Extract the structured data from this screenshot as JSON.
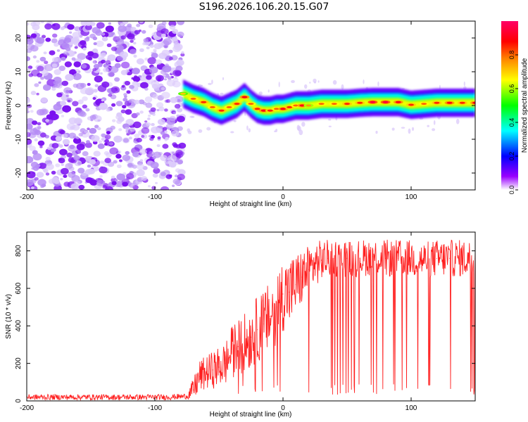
{
  "title": "S196.2026.106.20.15.G07",
  "chart_data": [
    {
      "type": "heatmap",
      "title": "S196.2026.106.20.15.G07",
      "xlabel": "Height of straight line (km)",
      "ylabel": "Frequency (Hz)",
      "xlim": [
        -200,
        150
      ],
      "ylim": [
        -25,
        25
      ],
      "x_ticks": [
        -200,
        -100,
        0,
        100
      ],
      "y_ticks": [
        -20,
        -10,
        0,
        10,
        20
      ],
      "noise_region_x": [
        -200,
        -78
      ],
      "ridge": {
        "x": [
          -78,
          -70,
          -62,
          -55,
          -48,
          -42,
          -36,
          -30,
          -25,
          -20,
          -15,
          -10,
          -5,
          0,
          5,
          10,
          15,
          20,
          30,
          40,
          50,
          60,
          70,
          80,
          90,
          100,
          110,
          120,
          130,
          140,
          150
        ],
        "frequency": [
          3.5,
          2.0,
          1.0,
          -0.5,
          -1.5,
          -0.5,
          0.5,
          2.5,
          0.5,
          -1.0,
          -1.5,
          -1.5,
          -1.0,
          -1.0,
          -0.5,
          0.0,
          0.0,
          0.0,
          0.5,
          0.5,
          0.5,
          0.8,
          1.0,
          1.0,
          1.0,
          0.2,
          0.5,
          0.8,
          0.8,
          0.8,
          0.8
        ],
        "amplitude": [
          0.7,
          0.8,
          0.85,
          0.8,
          0.85,
          0.8,
          0.85,
          0.9,
          0.8,
          0.85,
          0.9,
          0.85,
          0.8,
          0.9,
          0.85,
          0.8,
          0.9,
          0.75,
          0.8,
          0.8,
          0.85,
          0.85,
          0.95,
          0.95,
          0.9,
          0.85,
          0.8,
          0.85,
          0.9,
          0.85,
          0.9
        ]
      },
      "colorbar": {
        "label": "Normalized spectral amplitude",
        "range": [
          0.0,
          1.0
        ],
        "ticks": [
          0.0,
          0.2,
          0.4,
          0.6,
          0.8
        ],
        "tick_labels": [
          "0.0",
          "0.2",
          "0.4",
          "0.6",
          "0.8"
        ]
      },
      "colors": [
        "#ffffff",
        "#9900ff",
        "#0000ff",
        "#00ffff",
        "#00ff00",
        "#ffff00",
        "#ff8000",
        "#ff0000",
        "#ff0066"
      ]
    },
    {
      "type": "line",
      "xlabel": "Height of straight line (km)",
      "ylabel": "SNR (10 * v/v)",
      "xlim": [
        -200,
        150
      ],
      "ylim": [
        0,
        900
      ],
      "x_ticks": [
        -200,
        -100,
        0,
        100
      ],
      "y_ticks": [
        0,
        200,
        400,
        600,
        800
      ],
      "line_color": "#ff2020",
      "series": [
        {
          "name": "SNR",
          "x": [
            -200,
            -90,
            -75,
            -70,
            -65,
            -60,
            -55,
            -50,
            -45,
            -40,
            -35,
            -30,
            -25,
            -20,
            -15,
            -10,
            -5,
            0,
            5,
            10,
            15,
            20,
            25,
            30,
            35,
            40,
            50,
            60,
            70,
            80,
            90,
            100,
            110,
            120,
            130,
            140,
            150
          ],
          "y": [
            20,
            20,
            25,
            60,
            130,
            150,
            165,
            180,
            200,
            260,
            290,
            310,
            340,
            380,
            410,
            450,
            500,
            570,
            580,
            620,
            660,
            700,
            730,
            750,
            760,
            760,
            760,
            760,
            770,
            760,
            760,
            760,
            750,
            760,
            760,
            760,
            760
          ],
          "spread": [
            15,
            15,
            15,
            60,
            90,
            90,
            100,
            110,
            120,
            140,
            150,
            160,
            170,
            180,
            180,
            190,
            200,
            200,
            190,
            170,
            150,
            130,
            120,
            110,
            100,
            100,
            100,
            100,
            100,
            100,
            100,
            100,
            100,
            100,
            100,
            100,
            100
          ]
        }
      ]
    }
  ]
}
